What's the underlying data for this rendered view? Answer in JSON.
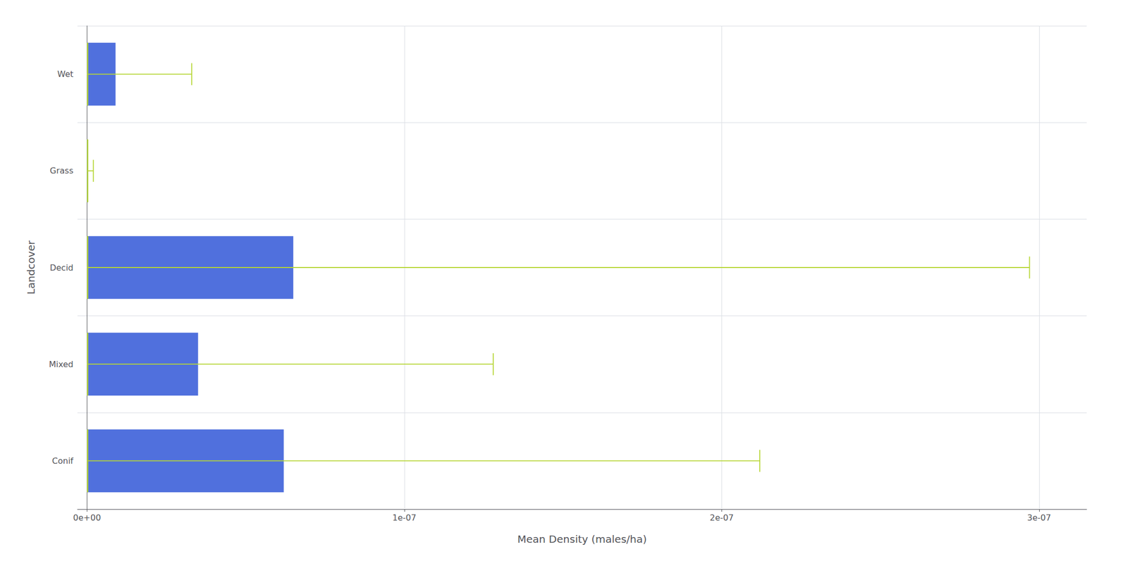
{
  "chart_data": {
    "type": "bar",
    "orientation": "horizontal",
    "xlabel": "Mean Density (males/ha)",
    "ylabel": "Landcover",
    "categories": [
      "Conif",
      "Mixed",
      "Decid",
      "Grass",
      "Wet"
    ],
    "values": [
      6.2e-08,
      3.5e-08,
      6.5e-08,
      2e-10,
      9e-09
    ],
    "median": [
      2e-10,
      2e-10,
      2e-10,
      2e-10,
      2e-10
    ],
    "whisker_upper": [
      2.12e-07,
      1.28e-07,
      2.97e-07,
      2e-09,
      3.3e-08
    ],
    "xlim": [
      -3e-09,
      3.15e-07
    ],
    "xticks": [
      {
        "value": 0,
        "label": "0e+00"
      },
      {
        "value": 1e-07,
        "label": "1e-07"
      },
      {
        "value": 2e-07,
        "label": "2e-07"
      },
      {
        "value": 3e-07,
        "label": "3e-07"
      }
    ],
    "grid": true
  }
}
